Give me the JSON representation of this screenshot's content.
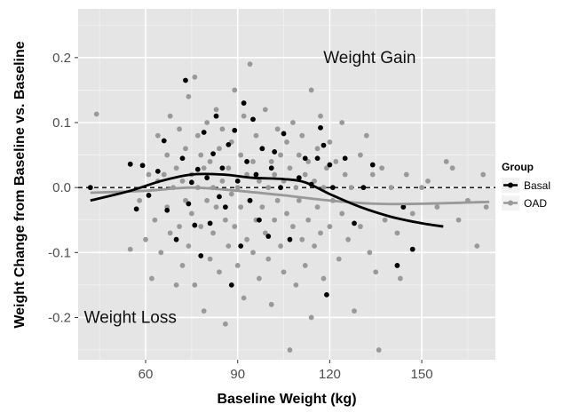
{
  "chart_data": {
    "type": "scatter",
    "title": "",
    "xlabel": "Baseline Weight (kg)",
    "ylabel": "Weight Change from Baseline vs. Baseline",
    "xlim": [
      38,
      174
    ],
    "ylim": [
      -0.265,
      0.275
    ],
    "x_ticks": [
      60,
      90,
      120,
      150
    ],
    "y_ticks": [
      -0.2,
      -0.1,
      0.0,
      0.1,
      0.2
    ],
    "x_tick_labels": [
      "60",
      "90",
      "120",
      "150"
    ],
    "y_tick_labels": [
      "-0.2",
      "-0.1",
      "0.0",
      "0.1",
      "0.2"
    ],
    "grid": true,
    "reference_line": {
      "y": 0,
      "style": "dashed"
    },
    "annotations": [
      {
        "text": "Weight Gain",
        "x": 133,
        "y": 0.2
      },
      {
        "text": "Weight Loss",
        "x": 55,
        "y": -0.2
      }
    ],
    "legend": {
      "title": "Group",
      "placement": "right",
      "entries": [
        {
          "label": "Basal",
          "color": "#000000"
        },
        {
          "label": "OAD",
          "color": "#999999"
        }
      ]
    },
    "colors": {
      "panel": "#e5e5e5",
      "grid": "#ffffff",
      "basal": "#000000",
      "oad": "#999999"
    },
    "series": [
      {
        "name": "OAD",
        "points": [
          [
            44,
            0.113
          ],
          [
            55,
            -0.095
          ],
          [
            58,
            -0.02
          ],
          [
            60,
            -0.08
          ],
          [
            61,
            0.02
          ],
          [
            62,
            -0.14
          ],
          [
            63,
            -0.05
          ],
          [
            64,
            0.01
          ],
          [
            64,
            0.08
          ],
          [
            65,
            -0.1
          ],
          [
            66,
            0.02
          ],
          [
            67,
            -0.03
          ],
          [
            67,
            0.05
          ],
          [
            68,
            -0.07
          ],
          [
            68,
            0.11
          ],
          [
            69,
            0.0
          ],
          [
            70,
            -0.15
          ],
          [
            70,
            0.03
          ],
          [
            71,
            -0.06
          ],
          [
            71,
            0.09
          ],
          [
            72,
            0.01
          ],
          [
            72,
            -0.12
          ],
          [
            73,
            -0.02
          ],
          [
            73,
            0.06
          ],
          [
            74,
            -0.09
          ],
          [
            74,
            0.14
          ],
          [
            75,
            0.02
          ],
          [
            75,
            -0.04
          ],
          [
            76,
            0.17
          ],
          [
            76,
            -0.15
          ],
          [
            77,
            0.0
          ],
          [
            77,
            0.08
          ],
          [
            78,
            -0.06
          ],
          [
            78,
            0.05
          ],
          [
            79,
            -0.19
          ],
          [
            79,
            0.03
          ],
          [
            80,
            -0.02
          ],
          [
            80,
            0.1
          ],
          [
            81,
            -0.11
          ],
          [
            81,
            0.04
          ],
          [
            82,
            0.0
          ],
          [
            82,
            -0.07
          ],
          [
            83,
            0.12
          ],
          [
            83,
            -0.03
          ],
          [
            84,
            0.06
          ],
          [
            84,
            -0.13
          ],
          [
            85,
            0.01
          ],
          [
            85,
            0.09
          ],
          [
            86,
            -0.05
          ],
          [
            86,
            -0.21
          ],
          [
            87,
            0.03
          ],
          [
            87,
            -0.09
          ],
          [
            88,
            0.07
          ],
          [
            88,
            -0.01
          ],
          [
            89,
            0.15
          ],
          [
            89,
            -0.06
          ],
          [
            90,
            0.0
          ],
          [
            90,
            -0.12
          ],
          [
            91,
            0.05
          ],
          [
            91,
            -0.03
          ],
          [
            92,
            0.11
          ],
          [
            92,
            -0.17
          ],
          [
            93,
            0.02
          ],
          [
            93,
            -0.08
          ],
          [
            94,
            0.19
          ],
          [
            94,
            -0.02
          ],
          [
            95,
            0.04
          ],
          [
            95,
            -0.1
          ],
          [
            96,
            -0.05
          ],
          [
            96,
            0.08
          ],
          [
            97,
            0.01
          ],
          [
            97,
            -0.14
          ],
          [
            98,
            0.06
          ],
          [
            98,
            -0.03
          ],
          [
            99,
            -0.07
          ],
          [
            99,
            0.12
          ],
          [
            100,
            0.0
          ],
          [
            100,
            -0.11
          ],
          [
            101,
            0.04
          ],
          [
            101,
            -0.18
          ],
          [
            102,
            0.02
          ],
          [
            102,
            -0.05
          ],
          [
            103,
            0.09
          ],
          [
            103,
            -0.02
          ],
          [
            104,
            -0.09
          ],
          [
            104,
            0.05
          ],
          [
            105,
            0.01
          ],
          [
            105,
            -0.13
          ],
          [
            106,
            0.07
          ],
          [
            106,
            -0.04
          ],
          [
            107,
            -0.25
          ],
          [
            107,
            0.03
          ],
          [
            108,
            -0.06
          ],
          [
            108,
            0.1
          ],
          [
            109,
            0.0
          ],
          [
            109,
            -0.15
          ],
          [
            110,
            0.05
          ],
          [
            110,
            -0.02
          ],
          [
            111,
            -0.08
          ],
          [
            111,
            0.08
          ],
          [
            112,
            0.02
          ],
          [
            112,
            -0.12
          ],
          [
            113,
            0.04
          ],
          [
            113,
            -0.05
          ],
          [
            114,
            0.15
          ],
          [
            114,
            -0.2
          ],
          [
            115,
            0.01
          ],
          [
            115,
            -0.09
          ],
          [
            116,
            0.06
          ],
          [
            116,
            -0.03
          ],
          [
            117,
            -0.07
          ],
          [
            117,
            0.11
          ],
          [
            118,
            0.0
          ],
          [
            118,
            -0.14
          ],
          [
            119,
            0.03
          ],
          [
            120,
            -0.06
          ],
          [
            120,
            0.07
          ],
          [
            121,
            -0.02
          ],
          [
            122,
            0.04
          ],
          [
            123,
            -0.11
          ],
          [
            124,
            0.1
          ],
          [
            124,
            -0.04
          ],
          [
            125,
            0.02
          ],
          [
            126,
            -0.08
          ],
          [
            127,
            0.0
          ],
          [
            128,
            -0.19
          ],
          [
            130,
            0.05
          ],
          [
            130,
            -0.06
          ],
          [
            132,
            0.08
          ],
          [
            133,
            -0.1
          ],
          [
            134,
            0.02
          ],
          [
            135,
            -0.13
          ],
          [
            136,
            -0.25
          ],
          [
            137,
            0.03
          ],
          [
            138,
            -0.05
          ],
          [
            140,
            0.0
          ],
          [
            142,
            -0.07
          ],
          [
            143,
            -0.14
          ],
          [
            145,
            0.02
          ],
          [
            147,
            -0.04
          ],
          [
            150,
            0.0
          ],
          [
            152,
            0.01
          ],
          [
            155,
            -0.03
          ],
          [
            158,
            0.04
          ],
          [
            160,
            0.03
          ],
          [
            162,
            -0.05
          ],
          [
            165,
            -0.02
          ],
          [
            168,
            -0.09
          ],
          [
            170,
            0.02
          ],
          [
            171,
            -0.03
          ]
        ],
        "smooth": [
          [
            42,
            -0.008
          ],
          [
            60,
            -0.005
          ],
          [
            75,
            0.0
          ],
          [
            90,
            -0.005
          ],
          [
            105,
            -0.012
          ],
          [
            120,
            -0.02
          ],
          [
            135,
            -0.025
          ],
          [
            150,
            -0.025
          ],
          [
            172,
            -0.022
          ]
        ]
      },
      {
        "name": "Basal",
        "points": [
          [
            42,
            0.0
          ],
          [
            55,
            0.036
          ],
          [
            57,
            -0.033
          ],
          [
            59,
            0.034
          ],
          [
            61,
            -0.012
          ],
          [
            64,
            0.025
          ],
          [
            66,
            0.072
          ],
          [
            67,
            -0.035
          ],
          [
            70,
            -0.08
          ],
          [
            72,
            0.045
          ],
          [
            73,
            0.165
          ],
          [
            74,
            -0.025
          ],
          [
            75,
            0.008
          ],
          [
            76,
            -0.058
          ],
          [
            77,
            0.028
          ],
          [
            78,
            -0.105
          ],
          [
            79,
            0.085
          ],
          [
            80,
            0.015
          ],
          [
            81,
            -0.055
          ],
          [
            82,
            0.052
          ],
          [
            83,
            0.11
          ],
          [
            84,
            -0.014
          ],
          [
            85,
            0.03
          ],
          [
            86,
            -0.03
          ],
          [
            87,
            0.066
          ],
          [
            88,
            -0.15
          ],
          [
            89,
            0.088
          ],
          [
            90,
            0.01
          ],
          [
            91,
            -0.09
          ],
          [
            92,
            0.13
          ],
          [
            93,
            0.04
          ],
          [
            94,
            -0.02
          ],
          [
            95,
            0.105
          ],
          [
            96,
            0.02
          ],
          [
            97,
            -0.05
          ],
          [
            98,
            0.06
          ],
          [
            100,
            -0.075
          ],
          [
            101,
            0.03
          ],
          [
            102,
            0.055
          ],
          [
            104,
            0.0
          ],
          [
            105,
            0.083
          ],
          [
            107,
            -0.08
          ],
          [
            110,
            0.015
          ],
          [
            112,
            0.045
          ],
          [
            114,
            0.005
          ],
          [
            116,
            0.045
          ],
          [
            117,
            0.092
          ],
          [
            118,
            0.065
          ],
          [
            119,
            -0.165
          ],
          [
            120,
            0.035
          ],
          [
            121,
            0.0
          ],
          [
            125,
            0.045
          ],
          [
            128,
            -0.055
          ],
          [
            131,
            0.0
          ],
          [
            134,
            0.035
          ],
          [
            142,
            -0.12
          ],
          [
            144,
            -0.03
          ],
          [
            147,
            -0.095
          ]
        ],
        "smooth": [
          [
            42,
            -0.02
          ],
          [
            55,
            -0.005
          ],
          [
            65,
            0.01
          ],
          [
            75,
            0.02
          ],
          [
            85,
            0.02
          ],
          [
            95,
            0.015
          ],
          [
            105,
            0.013
          ],
          [
            112,
            0.008
          ],
          [
            120,
            -0.01
          ],
          [
            130,
            -0.03
          ],
          [
            140,
            -0.045
          ],
          [
            150,
            -0.055
          ],
          [
            157,
            -0.06
          ]
        ]
      }
    ]
  }
}
